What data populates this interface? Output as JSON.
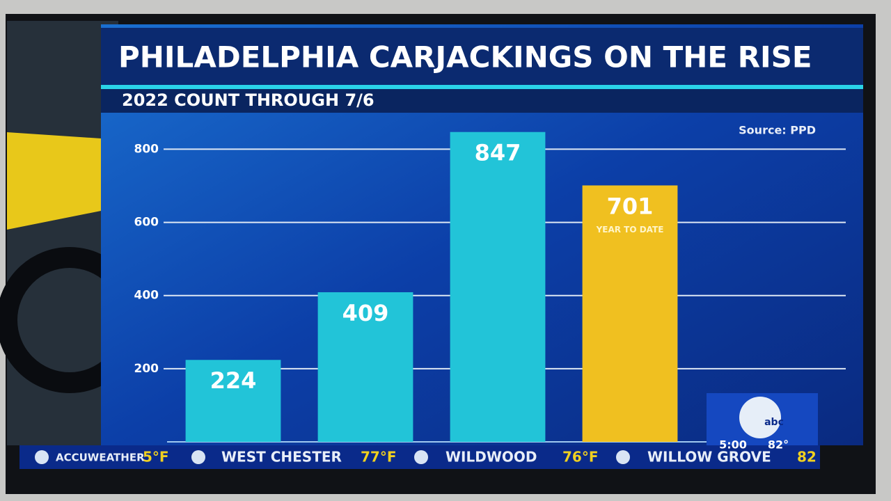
{
  "chart_data": {
    "type": "bar",
    "title": "PHILADELPHIA CARJACKINGS ON THE RISE",
    "subtitle": "2022 COUNT THROUGH 7/6",
    "source": "Source: PPD",
    "categories": [
      null,
      null,
      null,
      null
    ],
    "values": [
      224,
      409,
      847,
      701
    ],
    "colors": [
      "#22c4d8",
      "#22c4d8",
      "#22c4d8",
      "#f0c020"
    ],
    "annotation": "YEAR TO DATE",
    "ylim": [
      0,
      875
    ],
    "yticks": [
      200,
      400,
      600,
      800
    ],
    "grid": true
  },
  "ticker": {
    "items": [
      {
        "name": "ACCUWEATHER",
        "temp": "5°F"
      },
      {
        "name": "WEST CHESTER",
        "temp": "77°F"
      },
      {
        "name": "WILDWOOD",
        "temp": "76°F"
      },
      {
        "name": "WILLOW GROVE",
        "temp": "82"
      }
    ]
  },
  "bug": {
    "logo": "abc",
    "time": "5:00",
    "temp": "82°"
  }
}
